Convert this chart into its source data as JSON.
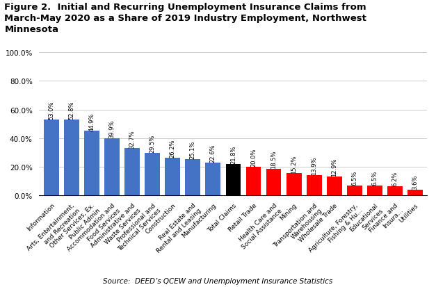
{
  "categories": [
    "Information",
    "Arts, Entertainment,\nand Recreation",
    "Other Services, Ex.\nPublic Admin",
    "Accommodation and\nFood Services",
    "Administrative and\nWaste Services",
    "Professional and\nTechnical Services",
    "Construction",
    "Real Estate and\nRental and Leasing",
    "Manufacturing",
    "Total Claims",
    "Retail Trade",
    "Health Care and\nSocial Assistance",
    "Mining",
    "Transportation and\nWarehousing",
    "Wholesale Trade",
    "Agriculture, Forestry,\nFishing & Hu...",
    "Educational\nServices",
    "Finance and\nInsura...",
    "Utilities"
  ],
  "values": [
    0.53,
    0.528,
    0.449,
    0.399,
    0.327,
    0.295,
    0.262,
    0.251,
    0.226,
    0.218,
    0.2,
    0.185,
    0.152,
    0.139,
    0.129,
    0.065,
    0.065,
    0.062,
    0.036
  ],
  "labels": [
    "53.0%",
    "52.8%",
    "44.9%",
    "39.9%",
    "32.7%",
    "29.5%",
    "26.2%",
    "25.1%",
    "22.6%",
    "21.8%",
    "20.0%",
    "18.5%",
    "15.2%",
    "13.9%",
    "12.9%",
    "6.5%",
    "6.5%",
    "6.2%",
    "3.6%"
  ],
  "colors": [
    "#4472C4",
    "#4472C4",
    "#4472C4",
    "#4472C4",
    "#4472C4",
    "#4472C4",
    "#4472C4",
    "#4472C4",
    "#4472C4",
    "#000000",
    "#FF0000",
    "#FF0000",
    "#FF0000",
    "#FF0000",
    "#FF0000",
    "#FF0000",
    "#FF0000",
    "#FF0000",
    "#FF0000"
  ],
  "title_line1": "Figure 2.  Initial and Recurring Unemployment Insurance Claims from",
  "title_line2": "March-May 2020 as a Share of 2019 Industry Employment, Northwest",
  "title_line3": "Minnesota",
  "source": "Source:  DEED’s QCEW and Unemployment Insurance Statistics",
  "ylim": [
    0,
    1.05
  ],
  "yticks": [
    0.0,
    0.2,
    0.4,
    0.6,
    0.8,
    1.0
  ],
  "ytick_labels": [
    "0.0%",
    "20.0%",
    "40.0%",
    "60.0%",
    "80.0%",
    "100.0%"
  ],
  "background_color": "#FFFFFF",
  "title_fontsize": 9.5,
  "label_fontsize": 6.0,
  "tick_fontsize": 6.5,
  "source_fontsize": 7.5,
  "ytick_fontsize": 7.5
}
